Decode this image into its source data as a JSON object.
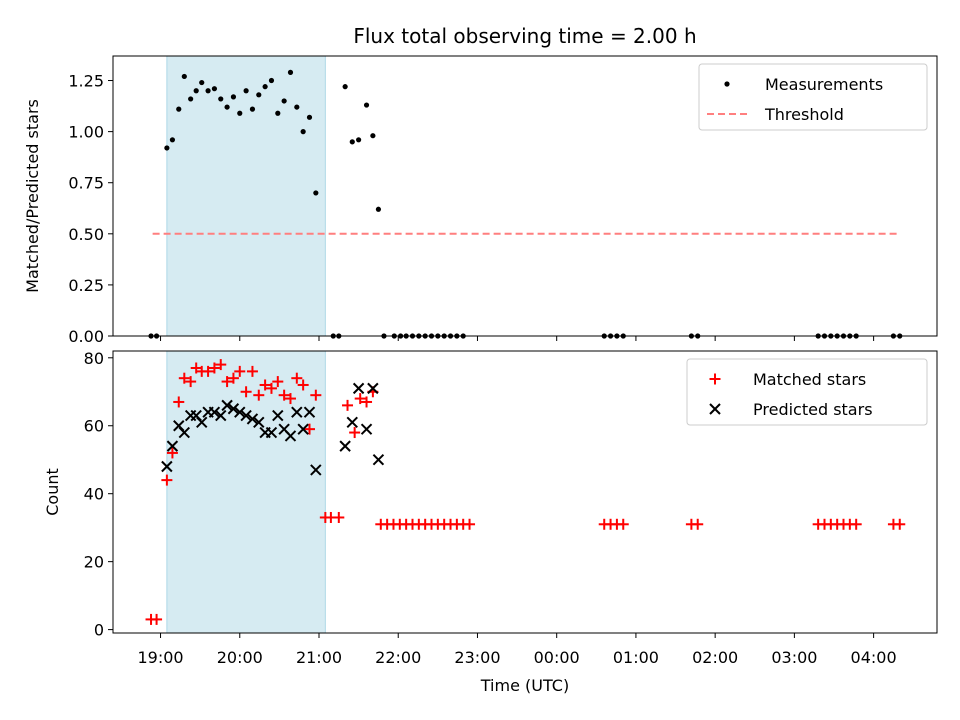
{
  "chart_data": {
    "type": "scatter",
    "title": "Flux total observing time = 2.00 h",
    "xlabel": "Time (UTC)",
    "x_unit": "hours since 19:00 UTC",
    "xlim": [
      -0.6,
      9.8
    ],
    "xticks": [
      {
        "v": 0,
        "label": "19:00"
      },
      {
        "v": 1,
        "label": "20:00"
      },
      {
        "v": 2,
        "label": "21:00"
      },
      {
        "v": 3,
        "label": "22:00"
      },
      {
        "v": 4,
        "label": "23:00"
      },
      {
        "v": 5,
        "label": "00:00"
      },
      {
        "v": 6,
        "label": "01:00"
      },
      {
        "v": 7,
        "label": "02:00"
      },
      {
        "v": 8,
        "label": "03:00"
      },
      {
        "v": 9,
        "label": "04:00"
      }
    ],
    "observing_span": [
      0.08,
      2.08
    ],
    "panels": [
      {
        "name": "ratio",
        "ylabel": "Matched/Predicted stars",
        "ylim": [
          0,
          1.37
        ],
        "yticks": [
          {
            "v": 0,
            "label": "0.00"
          },
          {
            "v": 0.25,
            "label": "0.25"
          },
          {
            "v": 0.5,
            "label": "0.50"
          },
          {
            "v": 0.75,
            "label": "0.75"
          },
          {
            "v": 1.0,
            "label": "1.00"
          },
          {
            "v": 1.25,
            "label": "1.25"
          }
        ],
        "legend": {
          "position": "top-right",
          "items": [
            {
              "label": "Measurements",
              "marker": "dot",
              "color": "#000000"
            },
            {
              "label": "Threshold",
              "marker": "dash",
              "color": "#ff7f7f"
            }
          ]
        },
        "threshold": {
          "value": 0.5,
          "x": [
            -0.1,
            9.3
          ],
          "color": "#ff7f7f"
        },
        "series": [
          {
            "name": "Measurements",
            "color": "#000000",
            "points": [
              [
                -0.12,
                0
              ],
              [
                -0.05,
                0
              ],
              [
                0.08,
                0.92
              ],
              [
                0.15,
                0.96
              ],
              [
                0.23,
                1.11
              ],
              [
                0.3,
                1.27
              ],
              [
                0.38,
                1.16
              ],
              [
                0.45,
                1.2
              ],
              [
                0.52,
                1.24
              ],
              [
                0.6,
                1.2
              ],
              [
                0.68,
                1.21
              ],
              [
                0.76,
                1.16
              ],
              [
                0.84,
                1.12
              ],
              [
                0.92,
                1.17
              ],
              [
                1.0,
                1.09
              ],
              [
                1.08,
                1.2
              ],
              [
                1.16,
                1.11
              ],
              [
                1.24,
                1.18
              ],
              [
                1.32,
                1.22
              ],
              [
                1.4,
                1.25
              ],
              [
                1.48,
                1.09
              ],
              [
                1.56,
                1.15
              ],
              [
                1.64,
                1.29
              ],
              [
                1.72,
                1.12
              ],
              [
                1.8,
                1.0
              ],
              [
                1.88,
                1.07
              ],
              [
                1.96,
                0.7
              ],
              [
                2.18,
                0
              ],
              [
                2.25,
                0
              ],
              [
                2.33,
                1.22
              ],
              [
                2.42,
                0.95
              ],
              [
                2.5,
                0.96
              ],
              [
                2.6,
                1.13
              ],
              [
                2.68,
                0.98
              ],
              [
                2.75,
                0.62
              ],
              [
                2.82,
                0
              ],
              [
                2.95,
                0
              ],
              [
                3.03,
                0
              ],
              [
                3.1,
                0
              ],
              [
                3.18,
                0
              ],
              [
                3.26,
                0
              ],
              [
                3.34,
                0
              ],
              [
                3.42,
                0
              ],
              [
                3.5,
                0
              ],
              [
                3.58,
                0
              ],
              [
                3.66,
                0
              ],
              [
                3.74,
                0
              ],
              [
                3.82,
                0
              ],
              [
                5.6,
                0
              ],
              [
                5.68,
                0
              ],
              [
                5.76,
                0
              ],
              [
                5.84,
                0
              ],
              [
                6.7,
                0
              ],
              [
                6.78,
                0
              ],
              [
                8.3,
                0
              ],
              [
                8.38,
                0
              ],
              [
                8.46,
                0
              ],
              [
                8.54,
                0
              ],
              [
                8.62,
                0
              ],
              [
                8.7,
                0
              ],
              [
                8.78,
                0
              ],
              [
                9.25,
                0
              ],
              [
                9.33,
                0
              ]
            ]
          }
        ]
      },
      {
        "name": "counts",
        "ylabel": "Count",
        "ylim": [
          -1,
          82
        ],
        "yticks": [
          {
            "v": 0,
            "label": "0"
          },
          {
            "v": 20,
            "label": "20"
          },
          {
            "v": 40,
            "label": "40"
          },
          {
            "v": 60,
            "label": "60"
          },
          {
            "v": 80,
            "label": "80"
          }
        ],
        "legend": {
          "position": "top-right",
          "items": [
            {
              "label": "Matched stars",
              "marker": "plus",
              "color": "#ff0000"
            },
            {
              "label": "Predicted stars",
              "marker": "x",
              "color": "#000000"
            }
          ]
        },
        "series": [
          {
            "name": "Matched stars",
            "marker": "plus",
            "color": "#ff0000",
            "points": [
              [
                -0.12,
                3
              ],
              [
                -0.05,
                3
              ],
              [
                0.08,
                44
              ],
              [
                0.15,
                52
              ],
              [
                0.23,
                67
              ],
              [
                0.3,
                74
              ],
              [
                0.38,
                73
              ],
              [
                0.45,
                77
              ],
              [
                0.52,
                76
              ],
              [
                0.6,
                76
              ],
              [
                0.68,
                77
              ],
              [
                0.76,
                78
              ],
              [
                0.84,
                73
              ],
              [
                0.92,
                74
              ],
              [
                1.0,
                76
              ],
              [
                1.08,
                70
              ],
              [
                1.16,
                76
              ],
              [
                1.24,
                69
              ],
              [
                1.32,
                72
              ],
              [
                1.4,
                71
              ],
              [
                1.48,
                73
              ],
              [
                1.56,
                69
              ],
              [
                1.64,
                68
              ],
              [
                1.72,
                74
              ],
              [
                1.8,
                72
              ],
              [
                1.88,
                59
              ],
              [
                1.96,
                69
              ],
              [
                2.08,
                33
              ],
              [
                2.15,
                33
              ],
              [
                2.25,
                33
              ],
              [
                2.36,
                66
              ],
              [
                2.45,
                58
              ],
              [
                2.52,
                68
              ],
              [
                2.6,
                67
              ],
              [
                2.68,
                70
              ],
              [
                2.78,
                31
              ],
              [
                2.86,
                31
              ],
              [
                2.94,
                31
              ],
              [
                3.02,
                31
              ],
              [
                3.1,
                31
              ],
              [
                3.18,
                31
              ],
              [
                3.26,
                31
              ],
              [
                3.34,
                31
              ],
              [
                3.42,
                31
              ],
              [
                3.5,
                31
              ],
              [
                3.58,
                31
              ],
              [
                3.66,
                31
              ],
              [
                3.74,
                31
              ],
              [
                3.82,
                31
              ],
              [
                3.9,
                31
              ],
              [
                5.6,
                31
              ],
              [
                5.68,
                31
              ],
              [
                5.76,
                31
              ],
              [
                5.84,
                31
              ],
              [
                6.7,
                31
              ],
              [
                6.78,
                31
              ],
              [
                8.3,
                31
              ],
              [
                8.38,
                31
              ],
              [
                8.46,
                31
              ],
              [
                8.54,
                31
              ],
              [
                8.62,
                31
              ],
              [
                8.7,
                31
              ],
              [
                8.78,
                31
              ],
              [
                9.25,
                31
              ],
              [
                9.33,
                31
              ]
            ]
          },
          {
            "name": "Predicted stars",
            "marker": "x",
            "color": "#000000",
            "points": [
              [
                0.08,
                48
              ],
              [
                0.15,
                54
              ],
              [
                0.23,
                60
              ],
              [
                0.3,
                58
              ],
              [
                0.38,
                63
              ],
              [
                0.45,
                63
              ],
              [
                0.52,
                61
              ],
              [
                0.6,
                64
              ],
              [
                0.68,
                64
              ],
              [
                0.76,
                63
              ],
              [
                0.84,
                66
              ],
              [
                0.92,
                65
              ],
              [
                1.0,
                64
              ],
              [
                1.08,
                63
              ],
              [
                1.16,
                62
              ],
              [
                1.24,
                61
              ],
              [
                1.32,
                58
              ],
              [
                1.4,
                58
              ],
              [
                1.48,
                63
              ],
              [
                1.56,
                59
              ],
              [
                1.64,
                57
              ],
              [
                1.72,
                64
              ],
              [
                1.8,
                59
              ],
              [
                1.88,
                64
              ],
              [
                1.96,
                47
              ],
              [
                2.33,
                54
              ],
              [
                2.42,
                61
              ],
              [
                2.5,
                71
              ],
              [
                2.6,
                59
              ],
              [
                2.68,
                71
              ],
              [
                2.75,
                50
              ]
            ]
          }
        ]
      }
    ]
  }
}
